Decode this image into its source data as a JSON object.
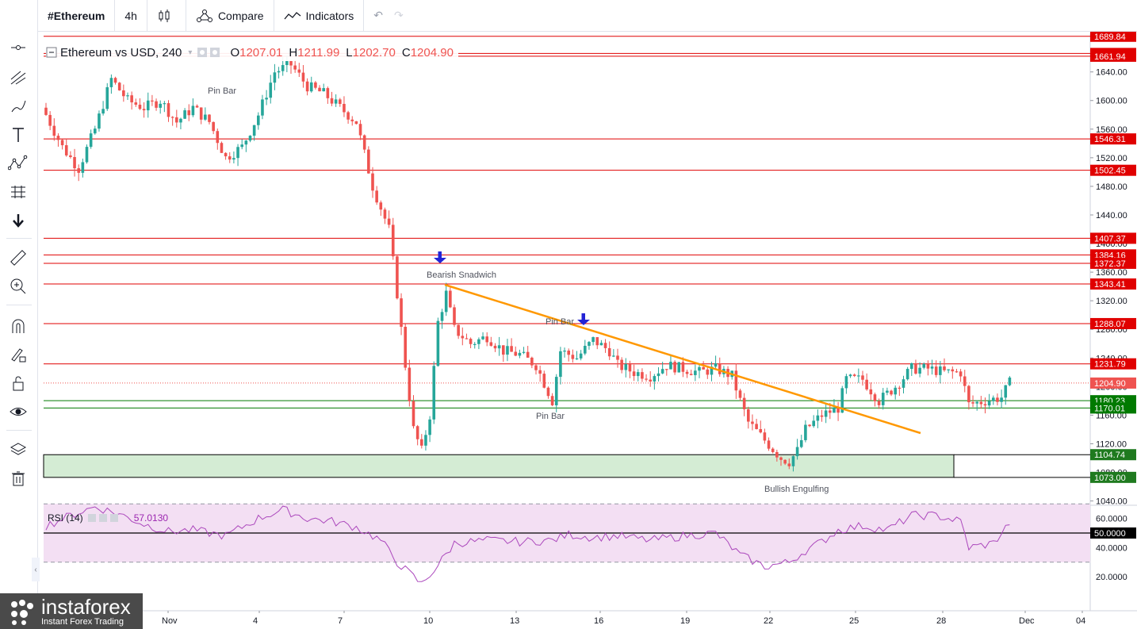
{
  "header": {
    "symbol": "#Ethereum",
    "interval": "4h",
    "compare": "Compare",
    "indicators": "Indicators"
  },
  "legend": {
    "title": "Ethereum vs USD, 240",
    "o_label": "O",
    "o": "1207.01",
    "h_label": "H",
    "h": "1211.99",
    "l_label": "L",
    "l": "1202.70",
    "c_label": "C",
    "c": "1204.90"
  },
  "rsi": {
    "label": "RSI (14)",
    "value": "57.0130"
  },
  "logo": {
    "brand": "instaforex",
    "tagline": "Instant Forex Trading"
  },
  "colors": {
    "up": "#26a69a",
    "down": "#ef5350",
    "level_line": "#e00000",
    "support_line": "#007a00",
    "trendline": "#ff9800",
    "arrow": "#2323d6",
    "rsi_line": "#ab47bc",
    "rsi_band": "#f3dff3"
  },
  "chart_data": {
    "type": "candlestick",
    "symbol": "Ethereum vs USD",
    "timeframe": "240",
    "y_ticks": [
      1640,
      1600,
      1560,
      1520,
      1480,
      1440,
      1400,
      1360,
      1320,
      1280,
      1240,
      1200,
      1160,
      1120,
      1080,
      1040
    ],
    "x_ticks": [
      "Nov",
      "4",
      "7",
      "10",
      "13",
      "16",
      "19",
      "22",
      "25",
      "28",
      "Dec",
      "04"
    ],
    "ylim": [
      1034,
      1694
    ],
    "resistance_levels": [
      1689.84,
      1665.84,
      1661.94,
      1546.31,
      1502.45,
      1407.37,
      1384.16,
      1372.37,
      1343.41,
      1288.07,
      1231.79
    ],
    "support_levels": [
      1180.23,
      1170.01
    ],
    "support_zone": [
      1073.0,
      1104.74
    ],
    "current_price": 1204.9,
    "annotations": [
      "Pin Bar",
      "Bearish Snadwich",
      "Pin Bar",
      "Pin Bar",
      "Bullish Engulfing"
    ],
    "close_path": [
      [
        0,
        1580
      ],
      [
        2,
        1535
      ],
      [
        4,
        1505
      ],
      [
        6,
        1560
      ],
      [
        8,
        1630
      ],
      [
        10,
        1600
      ],
      [
        12,
        1590
      ],
      [
        14,
        1600
      ],
      [
        16,
        1570
      ],
      [
        18,
        1590
      ],
      [
        20,
        1570
      ],
      [
        22,
        1520
      ],
      [
        24,
        1535
      ],
      [
        26,
        1580
      ],
      [
        28,
        1640
      ],
      [
        30,
        1650
      ],
      [
        32,
        1620
      ],
      [
        34,
        1610
      ],
      [
        36,
        1590
      ],
      [
        38,
        1570
      ],
      [
        40,
        1480
      ],
      [
        42,
        1420
      ],
      [
        43,
        1330
      ],
      [
        44,
        1230
      ],
      [
        45,
        1140
      ],
      [
        46,
        1110
      ],
      [
        47,
        1160
      ],
      [
        48,
        1290
      ],
      [
        49,
        1330
      ],
      [
        50,
        1280
      ],
      [
        52,
        1260
      ],
      [
        54,
        1270
      ],
      [
        56,
        1250
      ],
      [
        58,
        1245
      ],
      [
        60,
        1230
      ],
      [
        62,
        1180
      ],
      [
        63,
        1250
      ],
      [
        65,
        1240
      ],
      [
        67,
        1265
      ],
      [
        69,
        1250
      ],
      [
        70,
        1230
      ],
      [
        72,
        1220
      ],
      [
        74,
        1215
      ],
      [
        76,
        1230
      ],
      [
        78,
        1225
      ],
      [
        80,
        1220
      ],
      [
        82,
        1225
      ],
      [
        84,
        1215
      ],
      [
        85,
        1180
      ],
      [
        86,
        1150
      ],
      [
        88,
        1125
      ],
      [
        90,
        1100
      ],
      [
        91,
        1095
      ],
      [
        92,
        1110
      ],
      [
        93,
        1140
      ],
      [
        95,
        1160
      ],
      [
        97,
        1170
      ],
      [
        98,
        1210
      ],
      [
        100,
        1210
      ],
      [
        102,
        1180
      ],
      [
        104,
        1200
      ],
      [
        106,
        1225
      ],
      [
        108,
        1225
      ],
      [
        110,
        1220
      ],
      [
        112,
        1220
      ],
      [
        113,
        1175
      ],
      [
        115,
        1180
      ],
      [
        117,
        1185
      ],
      [
        118,
        1205
      ]
    ],
    "rsi": {
      "label": "RSI (14)",
      "current": 57.013,
      "y_ticks": [
        60,
        50,
        40,
        20
      ],
      "levels": [
        70,
        50,
        30
      ],
      "path": [
        [
          0,
          55
        ],
        [
          3,
          62
        ],
        [
          6,
          68
        ],
        [
          9,
          63
        ],
        [
          12,
          56
        ],
        [
          15,
          51
        ],
        [
          18,
          52
        ],
        [
          22,
          48
        ],
        [
          26,
          60
        ],
        [
          29,
          66
        ],
        [
          32,
          60
        ],
        [
          35,
          58
        ],
        [
          38,
          54
        ],
        [
          41,
          45
        ],
        [
          43,
          30
        ],
        [
          46,
          15
        ],
        [
          48,
          28
        ],
        [
          50,
          43
        ],
        [
          54,
          45
        ],
        [
          58,
          44
        ],
        [
          62,
          45
        ],
        [
          64,
          49
        ],
        [
          67,
          47
        ],
        [
          70,
          48
        ],
        [
          74,
          45
        ],
        [
          78,
          48
        ],
        [
          82,
          50
        ],
        [
          85,
          35
        ],
        [
          88,
          27
        ],
        [
          91,
          30
        ],
        [
          93,
          38
        ],
        [
          95,
          44
        ],
        [
          97,
          52
        ],
        [
          100,
          55
        ],
        [
          103,
          52
        ],
        [
          106,
          62
        ],
        [
          109,
          62
        ],
        [
          112,
          58
        ],
        [
          113,
          40
        ],
        [
          116,
          43
        ],
        [
          118,
          57
        ]
      ]
    }
  }
}
